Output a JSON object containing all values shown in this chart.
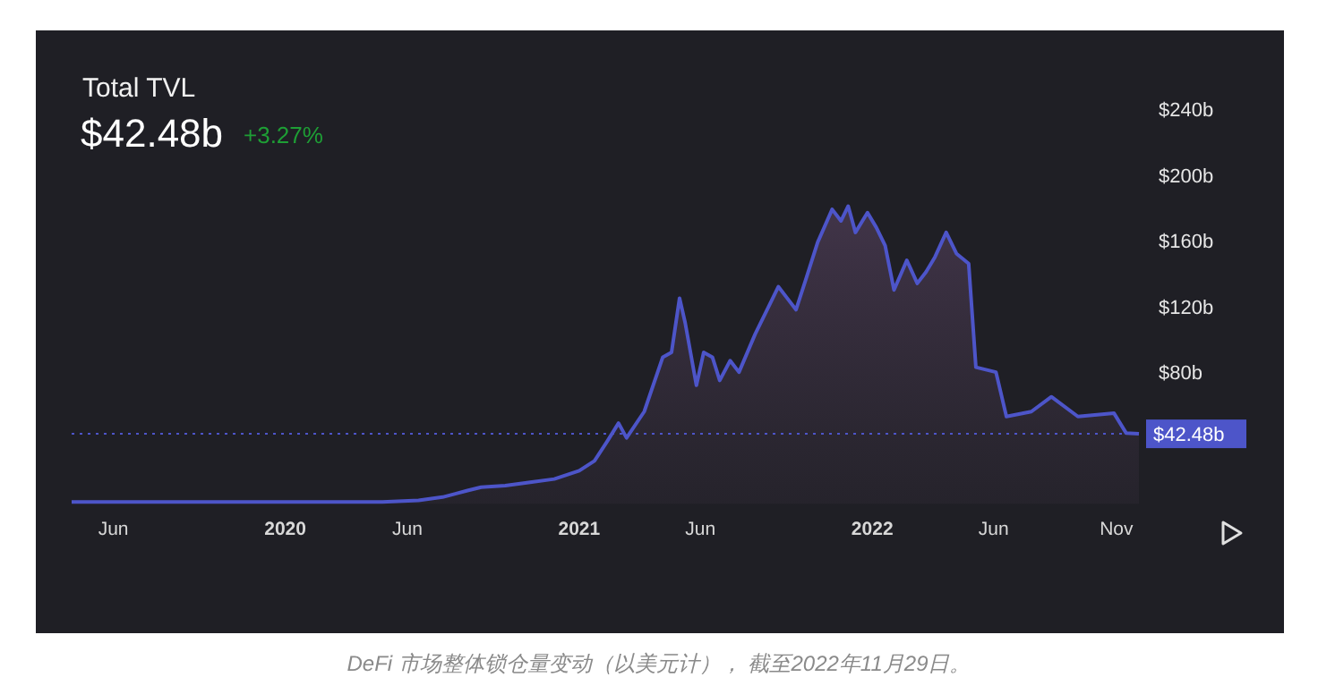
{
  "chart_data": {
    "type": "area",
    "title": "Total TVL",
    "subtitle": "$42.48b",
    "annotations": [
      "+3.27%",
      "DeFi 市场整体锁仓量变动（以美元计）， 截至2022年11月29日。"
    ],
    "x": [
      "2019-04-10",
      "2019-10-01",
      "2020-01-01",
      "2020-05-01",
      "2020-06-15",
      "2020-07-15",
      "2020-08-15",
      "2020-09-01",
      "2020-10-01",
      "2020-11-01",
      "2020-12-01",
      "2021-01-01",
      "2021-01-20",
      "2021-02-05",
      "2021-02-19",
      "2021-03-01",
      "2021-03-23",
      "2021-04-15",
      "2021-04-26",
      "2021-05-06",
      "2021-05-13",
      "2021-05-27",
      "2021-06-05",
      "2021-06-16",
      "2021-06-25",
      "2021-07-08",
      "2021-07-19",
      "2021-08-08",
      "2021-08-26",
      "2021-09-06",
      "2021-09-17",
      "2021-09-28",
      "2021-10-10",
      "2021-10-25",
      "2021-11-12",
      "2021-11-23",
      "2021-12-02",
      "2021-12-11",
      "2021-12-26",
      "2022-01-06",
      "2022-01-17",
      "2022-01-28",
      "2022-02-13",
      "2022-02-26",
      "2022-03-09",
      "2022-03-20",
      "2022-04-03",
      "2022-04-16",
      "2022-05-01",
      "2022-05-10",
      "2022-06-04",
      "2022-06-17",
      "2022-07-18",
      "2022-08-12",
      "2022-09-14",
      "2022-10-29",
      "2022-11-13",
      "2022-11-29"
    ],
    "series": [
      {
        "color": "#4d55c9",
        "values": [
          1,
          1,
          1,
          1,
          2,
          4,
          8,
          10,
          11,
          13,
          15,
          20,
          26,
          38,
          49,
          40,
          56,
          89,
          92,
          125,
          110,
          72,
          92,
          89,
          75,
          87,
          80,
          103,
          121,
          132,
          125,
          118,
          136,
          159,
          179,
          172,
          181,
          165,
          177,
          168,
          157,
          130,
          148,
          134,
          141,
          150,
          165,
          152,
          146,
          83,
          80,
          53,
          56,
          65,
          53,
          55,
          43,
          42.48
        ]
      }
    ],
    "xlim": [
      "2019-04-10",
      "2022-11-29"
    ],
    "xticks": [
      {
        "value": "2019-06",
        "label": "Jun"
      },
      {
        "value": "2020",
        "label": "2020"
      },
      {
        "value": "2020-06",
        "label": "Jun"
      },
      {
        "value": "2021",
        "label": "2021"
      },
      {
        "value": "2021-06",
        "label": "Jun"
      },
      {
        "value": "2022",
        "label": "2022"
      },
      {
        "value": "2022-06",
        "label": "Jun"
      },
      {
        "value": "2022-11",
        "label": "Nov"
      }
    ],
    "ylim": [
      0,
      240
    ],
    "yticks": [
      {
        "value": 80,
        "label": "$80b"
      },
      {
        "value": 120,
        "label": "$120b"
      },
      {
        "value": 160,
        "label": "$160b"
      },
      {
        "value": 200,
        "label": "$200b"
      },
      {
        "value": 240,
        "label": "$240b"
      }
    ],
    "ref_lines": [
      {
        "axis": "y",
        "value": 42.48,
        "label": "$42.48b",
        "color": "#4d55c9",
        "line_style": "dotted"
      }
    ],
    "grid": false
  }
}
